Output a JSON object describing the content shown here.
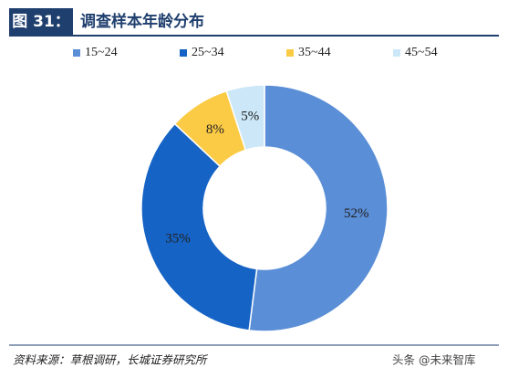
{
  "chart_data": {
    "type": "donut",
    "figure_label": "图 31：",
    "title": "调查样本年龄分布",
    "categories": [
      "15~24",
      "25~34",
      "35~44",
      "45~54"
    ],
    "values": [
      52,
      35,
      8,
      5
    ],
    "value_labels": [
      "52%",
      "35%",
      "8%",
      "5%"
    ],
    "colors": [
      "#5a8ed6",
      "#1563c4",
      "#fccb45",
      "#cbe7f8"
    ],
    "legend": "top",
    "source": "资料来源：草根调研，长城证券研究所",
    "watermark": "头条 @未来智库"
  }
}
